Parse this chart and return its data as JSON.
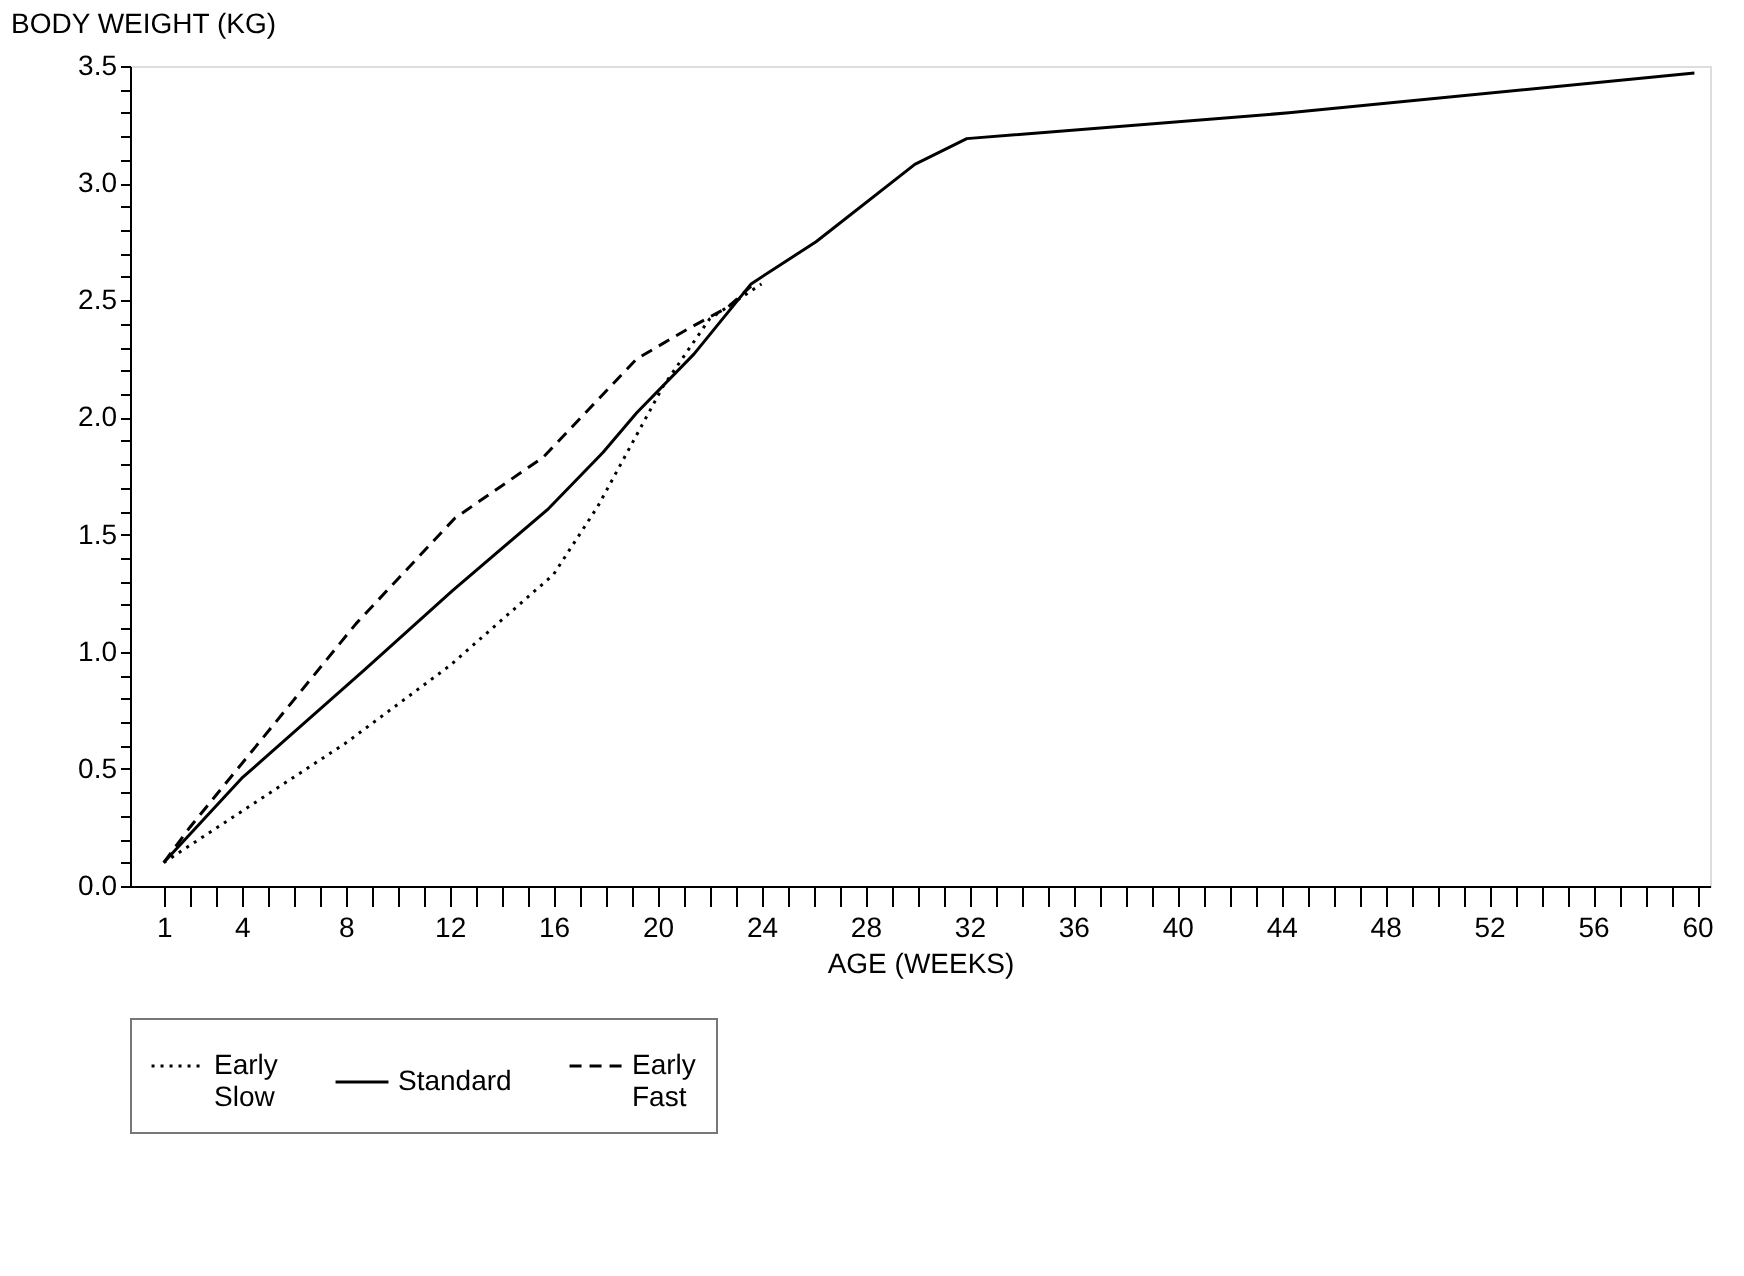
{
  "chart_data": {
    "type": "line",
    "xlabel": "AGE (WEEKS)",
    "ylabel": "BODY WEIGHT (KG)",
    "series": [
      {
        "name": "Early Slow",
        "color": "#000000",
        "line_style": "dotted",
        "x": [
          1,
          8,
          12,
          16,
          17.7,
          20.2,
          22,
          24
        ],
        "values": [
          0.1,
          0.61,
          0.94,
          1.33,
          1.62,
          2.13,
          2.42,
          2.57
        ]
      },
      {
        "name": "Standard",
        "color": "#000000",
        "line_style": "solid",
        "x": [
          1,
          4,
          8.7,
          12.1,
          15.8,
          17.9,
          19.2,
          21.4,
          23.6,
          26.1,
          29.9,
          31.9,
          44.3,
          59.9
        ],
        "values": [
          0.1,
          0.46,
          0.92,
          1.26,
          1.61,
          1.85,
          2.02,
          2.27,
          2.57,
          2.75,
          3.08,
          3.19,
          3.3,
          3.47
        ]
      },
      {
        "name": "Early Fast",
        "color": "#000000",
        "line_style": "dashed",
        "x": [
          1,
          2,
          8.4,
          12.2,
          15.6,
          19.2,
          21.2,
          22.7,
          23.6
        ],
        "values": [
          0.1,
          0.25,
          1.12,
          1.57,
          1.83,
          2.25,
          2.38,
          2.47,
          2.56
        ]
      }
    ],
    "xlim": [
      -0.3,
      60.5
    ],
    "xticks": [
      1,
      {
        "value": 2,
        "label": null
      },
      {
        "value": 3,
        "label": null
      },
      4,
      {
        "value": 5,
        "label": null
      },
      {
        "value": 6,
        "label": null
      },
      {
        "value": 7,
        "label": null
      },
      8,
      {
        "value": 9,
        "label": null
      },
      {
        "value": 10,
        "label": null
      },
      {
        "value": 11,
        "label": null
      },
      12,
      {
        "value": 13,
        "label": null
      },
      {
        "value": 14,
        "label": null
      },
      {
        "value": 15,
        "label": null
      },
      16,
      {
        "value": 17,
        "label": null
      },
      {
        "value": 18,
        "label": null
      },
      {
        "value": 19,
        "label": null
      },
      20,
      {
        "value": 21,
        "label": null
      },
      {
        "value": 22,
        "label": null
      },
      {
        "value": 23,
        "label": null
      },
      24,
      {
        "value": 25,
        "label": null
      },
      {
        "value": 26,
        "label": null
      },
      {
        "value": 27,
        "label": null
      },
      28,
      {
        "value": 29,
        "label": null
      },
      {
        "value": 30,
        "label": null
      },
      {
        "value": 31,
        "label": null
      },
      32,
      {
        "value": 33,
        "label": null
      },
      {
        "value": 34,
        "label": null
      },
      {
        "value": 35,
        "label": null
      },
      36,
      {
        "value": 37,
        "label": null
      },
      {
        "value": 38,
        "label": null
      },
      {
        "value": 39,
        "label": null
      },
      40,
      {
        "value": 41,
        "label": null
      },
      {
        "value": 42,
        "label": null
      },
      {
        "value": 43,
        "label": null
      },
      44,
      {
        "value": 45,
        "label": null
      },
      {
        "value": 46,
        "label": null
      },
      {
        "value": 47,
        "label": null
      },
      48,
      {
        "value": 49,
        "label": null
      },
      {
        "value": 50,
        "label": null
      },
      {
        "value": 51,
        "label": null
      },
      52,
      {
        "value": 53,
        "label": null
      },
      {
        "value": 54,
        "label": null
      },
      {
        "value": 55,
        "label": null
      },
      56,
      {
        "value": 57,
        "label": null
      },
      {
        "value": 58,
        "label": null
      },
      {
        "value": 59,
        "label": null
      },
      60
    ],
    "ylim": [
      0,
      3.5
    ],
    "yticks": [
      {
        "value": 0,
        "label": "0.0"
      },
      {
        "value": 0.1,
        "label": null
      },
      {
        "value": 0.2,
        "label": null
      },
      {
        "value": 0.3,
        "label": null
      },
      {
        "value": 0.4,
        "label": null
      },
      0.5,
      {
        "value": 0.6,
        "label": null
      },
      {
        "value": 0.7,
        "label": null
      },
      {
        "value": 0.8,
        "label": null
      },
      {
        "value": 0.9,
        "label": null
      },
      {
        "value": 1,
        "label": "1.0"
      },
      {
        "value": 1.1,
        "label": null
      },
      {
        "value": 1.2,
        "label": null
      },
      {
        "value": 1.3,
        "label": null
      },
      {
        "value": 1.4,
        "label": null
      },
      1.5,
      {
        "value": 1.6,
        "label": null
      },
      {
        "value": 1.7,
        "label": null
      },
      {
        "value": 1.8,
        "label": null
      },
      {
        "value": 1.9,
        "label": null
      },
      {
        "value": 2,
        "label": "2.0"
      },
      {
        "value": 2.1,
        "label": null
      },
      {
        "value": 2.2,
        "label": null
      },
      {
        "value": 2.3,
        "label": null
      },
      {
        "value": 2.4,
        "label": null
      },
      2.5,
      {
        "value": 2.6,
        "label": null
      },
      {
        "value": 2.7,
        "label": null
      },
      {
        "value": 2.8,
        "label": null
      },
      {
        "value": 2.9,
        "label": null
      },
      {
        "value": 3,
        "label": "3.0"
      },
      {
        "value": 3.1,
        "label": null
      },
      {
        "value": 3.2,
        "label": null
      },
      {
        "value": 3.3,
        "label": null
      },
      {
        "value": 3.4,
        "label": null
      },
      3.5
    ],
    "grid": false,
    "legend": "bottom",
    "marker": "none"
  }
}
